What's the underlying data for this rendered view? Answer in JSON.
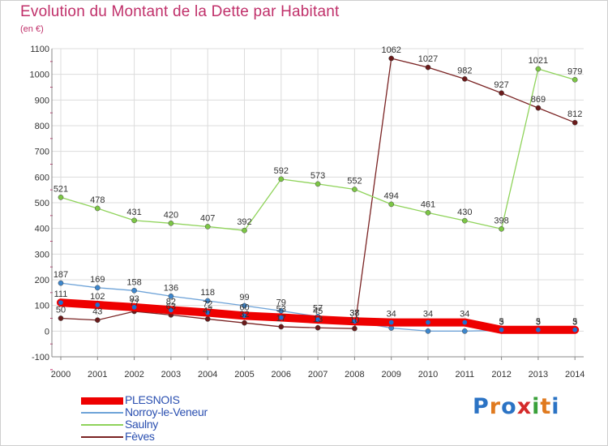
{
  "header": {
    "title": "Evolution du Montant de la Dette par Habitant",
    "subtitle": "(en €)"
  },
  "logo": {
    "letters": [
      "P",
      "r",
      "o",
      "x",
      "i",
      "t",
      "i"
    ],
    "colors": [
      "#2b73c4",
      "#e07a1f",
      "#2b73c4",
      "#d42a2a",
      "#3aa13a",
      "#e07a1f",
      "#2b73c4"
    ]
  },
  "chart_data": {
    "type": "line",
    "title": "Evolution du Montant de la Dette par Habitant",
    "subtitle": "(en €)",
    "x": [
      "2000",
      "2001",
      "2002",
      "2003",
      "2004",
      "2005",
      "2006",
      "2007",
      "2008",
      "2009",
      "2010",
      "2011",
      "2012",
      "2013",
      "2014"
    ],
    "yticks": [
      "-100",
      "0",
      "100",
      "200",
      "300",
      "400",
      "500",
      "600",
      "700",
      "800",
      "900",
      "1000",
      "1100"
    ],
    "ylim": [
      -100,
      1100
    ],
    "grid": true,
    "legend_position": "bottom-left",
    "series": [
      {
        "name": "PLESNOIS",
        "color": "#ee0000",
        "marker": "#1f6fd0",
        "line_width": 10,
        "values": [
          111,
          102,
          93,
          82,
          72,
          60,
          53,
          45,
          38,
          34,
          34,
          34,
          5,
          5,
          5
        ],
        "labels": [
          "111",
          "102",
          "93",
          "82",
          "72",
          "60",
          "53",
          "45",
          "38",
          "34",
          "34",
          "34",
          "5",
          "5",
          "5"
        ]
      },
      {
        "name": "Norroy-le-Veneur",
        "color": "#6ea3d8",
        "marker": "#3d86cc",
        "line_width": 1.3,
        "values": [
          187,
          169,
          158,
          136,
          118,
          99,
          79,
          57,
          37,
          12,
          0,
          0,
          3,
          3,
          3
        ],
        "labels": [
          "187",
          "169",
          "158",
          "136",
          "118",
          "99",
          "79",
          "57",
          "37",
          "",
          "",
          "",
          "3",
          "3",
          "3"
        ]
      },
      {
        "name": "Saulny",
        "color": "#8fd35a",
        "marker": "#7cc645",
        "line_width": 1.3,
        "values": [
          521,
          478,
          431,
          420,
          407,
          392,
          592,
          573,
          552,
          494,
          461,
          430,
          398,
          1021,
          979
        ],
        "labels": [
          "521",
          "478",
          "431",
          "420",
          "407",
          "392",
          "592",
          "573",
          "552",
          "494",
          "461",
          "430",
          "398",
          "1021",
          "979"
        ]
      },
      {
        "name": "Fèves",
        "color": "#7a2323",
        "marker": "#6a1a1a",
        "line_width": 1.3,
        "values": [
          50,
          43,
          77,
          63,
          47,
          32,
          17,
          13,
          10,
          1062,
          1027,
          982,
          927,
          869,
          812
        ],
        "labels": [
          "50",
          "43",
          "77",
          "63",
          "47",
          "32",
          "17",
          "13",
          "10",
          "1062",
          "1027",
          "982",
          "927",
          "869",
          "812"
        ]
      }
    ]
  }
}
